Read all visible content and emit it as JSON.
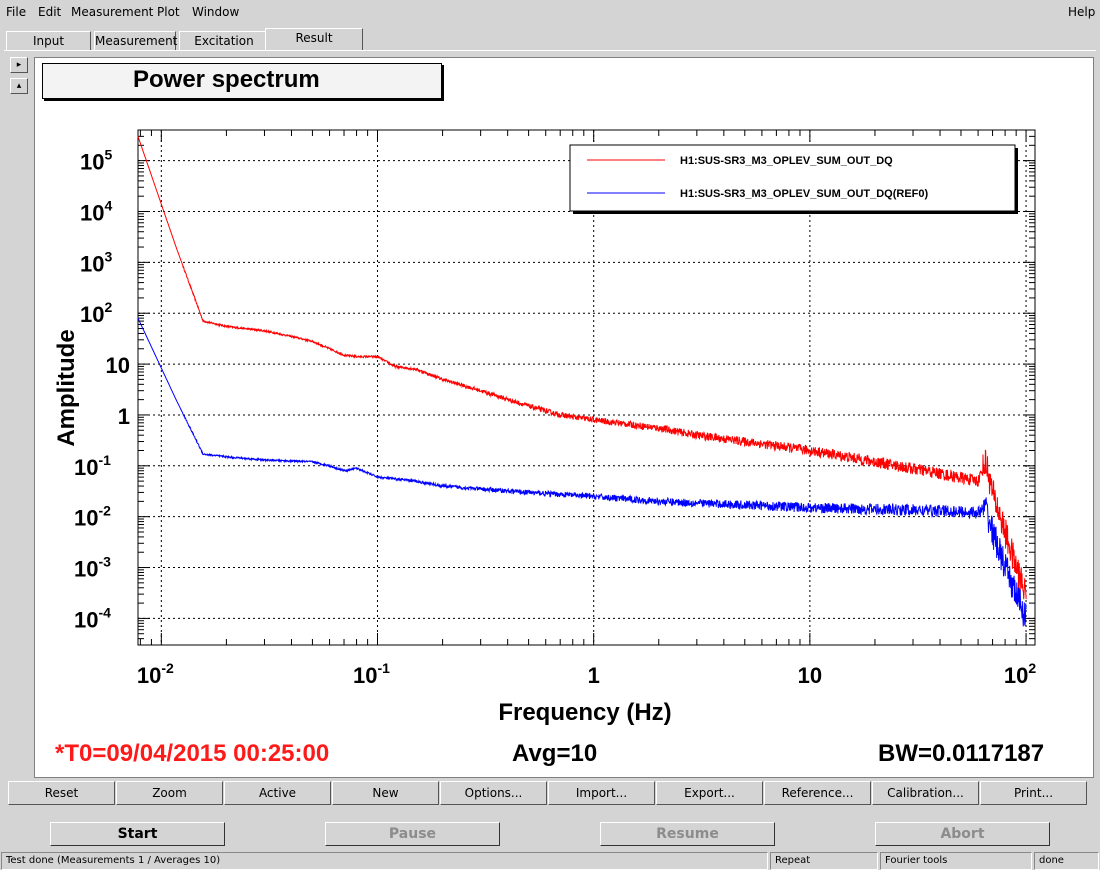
{
  "menu": {
    "file": "File",
    "edit": "Edit",
    "measurement": "Measurement",
    "plot": "Plot",
    "window": "Window",
    "help": "Help"
  },
  "tabs": [
    {
      "label": "Input"
    },
    {
      "label": "Measurement"
    },
    {
      "label": "Excitation"
    },
    {
      "label": "Result"
    }
  ],
  "side_buttons": {
    "right_arrow": "▸",
    "up_arrow": "▴"
  },
  "plot": {
    "title": "Power spectrum",
    "xlabel": "Frequency (Hz)",
    "ylabel": "Amplitude",
    "x_ticks": [
      {
        "base": "10",
        "exp": "-2"
      },
      {
        "base": "10",
        "exp": "-1"
      },
      {
        "base": "1",
        "exp": ""
      },
      {
        "base": "10",
        "exp": ""
      },
      {
        "base": "10",
        "exp": "2"
      }
    ],
    "y_ticks": [
      {
        "base": "10",
        "exp": "5"
      },
      {
        "base": "10",
        "exp": "4"
      },
      {
        "base": "10",
        "exp": "3"
      },
      {
        "base": "10",
        "exp": "2"
      },
      {
        "base": "10",
        "exp": ""
      },
      {
        "base": "1",
        "exp": ""
      },
      {
        "base": "10",
        "exp": "-1"
      },
      {
        "base": "10",
        "exp": "-2"
      },
      {
        "base": "10",
        "exp": "-3"
      },
      {
        "base": "10",
        "exp": "-4"
      }
    ],
    "legend": [
      {
        "name": "H1:SUS-SR3_M3_OPLEV_SUM_OUT_DQ",
        "color": "#ff0000"
      },
      {
        "name": "H1:SUS-SR3_M3_OPLEV_SUM_OUT_DQ(REF0)",
        "color": "#0000ff"
      }
    ]
  },
  "chart_data": {
    "type": "line",
    "title": "Power spectrum",
    "xlabel": "Frequency (Hz)",
    "ylabel": "Amplitude",
    "x_scale": "log",
    "y_scale": "log",
    "xlim": [
      0.0078,
      110
    ],
    "ylim": [
      3e-05,
      400000
    ],
    "grid": true,
    "legend_position": "top-right",
    "series": [
      {
        "name": "H1:SUS-SR3_M3_OPLEV_SUM_OUT_DQ",
        "color": "#ff0000",
        "x": [
          0.0078,
          0.0117,
          0.0156,
          0.02,
          0.03,
          0.04,
          0.05,
          0.06,
          0.07,
          0.08,
          0.1,
          0.12,
          0.15,
          0.2,
          0.3,
          0.5,
          0.7,
          1,
          2,
          3,
          5,
          10,
          20,
          40,
          60,
          65,
          70,
          80,
          90,
          100
        ],
        "y": [
          300000,
          2000,
          70,
          55,
          45,
          35,
          28,
          20,
          15,
          14,
          14,
          9,
          8,
          5,
          3,
          1.5,
          1,
          0.8,
          0.55,
          0.4,
          0.3,
          0.2,
          0.12,
          0.07,
          0.05,
          0.12,
          0.03,
          0.005,
          0.001,
          0.0003
        ],
        "noise": 0.12
      },
      {
        "name": "H1:SUS-SR3_M3_OPLEV_SUM_OUT_DQ(REF0)",
        "color": "#0000ff",
        "x": [
          0.0078,
          0.0117,
          0.0156,
          0.02,
          0.03,
          0.05,
          0.06,
          0.07,
          0.08,
          0.1,
          0.15,
          0.2,
          0.3,
          0.5,
          1,
          2,
          5,
          10,
          20,
          40,
          60,
          65,
          70,
          80,
          90,
          100
        ],
        "y": [
          80,
          2,
          0.17,
          0.15,
          0.13,
          0.12,
          0.1,
          0.08,
          0.09,
          0.06,
          0.05,
          0.04,
          0.035,
          0.03,
          0.025,
          0.02,
          0.017,
          0.015,
          0.014,
          0.013,
          0.012,
          0.015,
          0.005,
          0.001,
          0.0003,
          0.0001
        ],
        "noise": 0.12
      }
    ]
  },
  "info": {
    "t0": "*T0=09/04/2015 00:25:00",
    "avg": "Avg=10",
    "bw": "BW=0.0117187"
  },
  "buttons": [
    "Reset",
    "Zoom",
    "Active",
    "New",
    "Options...",
    "Import...",
    "Export...",
    "Reference...",
    "Calibration...",
    "Print..."
  ],
  "controls": {
    "start": "Start",
    "pause": "Pause",
    "resume": "Resume",
    "abort": "Abort"
  },
  "status": {
    "message": "Test done (Measurements 1 / Averages 10)",
    "repeat": "Repeat",
    "tool": "Fourier tools",
    "state": "done"
  },
  "colors": {
    "t0": "#ff1a1a",
    "trace": "#ff0000",
    "reference": "#0000ff"
  }
}
